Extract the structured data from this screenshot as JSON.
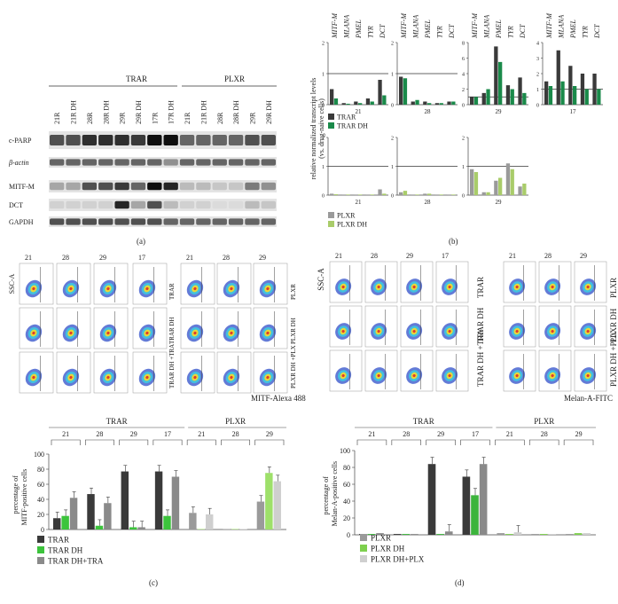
{
  "panel_labels": {
    "a": "(a)",
    "b": "(b)",
    "c": "(c)",
    "d": "(d)"
  },
  "panel_a": {
    "group_trar": "TRAR",
    "group_plxr": "PLXR",
    "lanes": [
      "21R",
      "21R DH",
      "28R",
      "28R DH",
      "29R",
      "29R DH",
      "17R",
      "17R DH",
      "21R",
      "21R DH",
      "28R",
      "28R DH",
      "29R",
      "29R DH"
    ],
    "rows": [
      "c-PARP",
      "β-actin",
      "MITF-M",
      "DCT",
      "GAPDH"
    ]
  },
  "panel_b": {
    "genes": [
      "MITF-M",
      "MLANA",
      "PMEL",
      "TYR",
      "DCT"
    ],
    "ylabel_line1": "relative normalized transcript levels",
    "ylabel_line2": "(vs. drug-naive cells)",
    "top_legend": [
      "TRAR",
      "TRAR DH"
    ],
    "bottom_legend": [
      "PLXR",
      "PLXR DH"
    ],
    "top_colors": [
      "#3a3a3a",
      "#1a8a4a"
    ],
    "bottom_colors": [
      "#9a9a9a",
      "#a9cc6a"
    ]
  },
  "panel_c": {
    "flow_cols": [
      "21",
      "28",
      "29",
      "17",
      "21",
      "28",
      "29"
    ],
    "row_labels_trar": [
      "TRAR",
      "TRAR DH",
      "TRAR DH +TRA"
    ],
    "row_labels_plxr": [
      "PLXR",
      "PLXR DH",
      "PLXR DH +PLX"
    ],
    "y_axis": "SSC-A",
    "x_axis": "MITF-Alexa 488",
    "ylabel_line1": "percentage of",
    "ylabel_line2": "MITF-positive cells",
    "group_trar": "TRAR",
    "group_plxr": "PLXR",
    "groups": [
      "21",
      "28",
      "29",
      "17",
      "21",
      "28",
      "29"
    ],
    "legend": [
      "TRAR",
      "TRAR DH",
      "TRAR DH+TRA"
    ],
    "colors": [
      "#3a3a3a",
      "#3cc43c",
      "#8a8a8a"
    ]
  },
  "panel_d": {
    "flow_cols": [
      "21",
      "28",
      "29",
      "17",
      "21",
      "28",
      "29"
    ],
    "row_labels_trar": [
      "TRAR",
      "TRAR DH",
      "TRAR DH +TRA"
    ],
    "row_labels_plxr": [
      "PLXR",
      "PLXR DH",
      "PLXR DH +PLX"
    ],
    "y_axis": "SSC-A",
    "x_axis": "Melan-A-FITC",
    "ylabel_line1": "percentage of",
    "ylabel_line2": "Melan-A-positive cells",
    "group_trar": "TRAR",
    "group_plxr": "PLXR",
    "groups": [
      "21",
      "28",
      "29",
      "17",
      "21",
      "28",
      "29"
    ],
    "legend": [
      "PLXR",
      "PLXR DH",
      "PLXR DH+PLX"
    ],
    "colors": [
      "#5a5a5a",
      "#3cb43c",
      "#9a9a9a"
    ],
    "legend_colors": [
      "#9a9a9a",
      "#7ed04e",
      "#cfcfcf"
    ]
  },
  "chart_data": [
    {
      "type": "bar",
      "id": "b-top",
      "categories_x": [
        "MITF-M",
        "MLANA",
        "PMEL",
        "TYR",
        "DCT"
      ],
      "panels": [
        {
          "label": "21",
          "ylim": [
            0,
            2
          ],
          "ticks": [
            0,
            1,
            2
          ],
          "series": [
            {
              "name": "TRAR",
              "values": [
                0.5,
                0.05,
                0.1,
                0.2,
                0.8
              ]
            },
            {
              "name": "TRAR DH",
              "values": [
                0.2,
                0.03,
                0.05,
                0.1,
                0.3
              ]
            }
          ]
        },
        {
          "label": "28",
          "ylim": [
            0,
            2
          ],
          "ticks": [
            0,
            1,
            2
          ],
          "series": [
            {
              "name": "TRAR",
              "values": [
                0.9,
                0.1,
                0.1,
                0.05,
                0.1
              ]
            },
            {
              "name": "TRAR DH",
              "values": [
                0.85,
                0.15,
                0.05,
                0.05,
                0.1
              ]
            }
          ]
        },
        {
          "label": "29",
          "ylim": [
            0,
            8
          ],
          "ticks": [
            0,
            2,
            4,
            6,
            8
          ],
          "series": [
            {
              "name": "TRAR",
              "values": [
                1.0,
                1.5,
                7.5,
                2.5,
                3.5
              ]
            },
            {
              "name": "TRAR DH",
              "values": [
                1.0,
                2.0,
                5.5,
                2.0,
                1.5
              ]
            }
          ]
        },
        {
          "label": "17",
          "ylim": [
            0,
            4
          ],
          "ticks": [
            0,
            1,
            2,
            3,
            4
          ],
          "series": [
            {
              "name": "TRAR",
              "values": [
                1.5,
                3.5,
                2.5,
                2.0,
                2.0
              ]
            },
            {
              "name": "TRAR DH",
              "values": [
                1.2,
                1.5,
                1.2,
                1.0,
                1.0
              ]
            }
          ]
        }
      ]
    },
    {
      "type": "bar",
      "id": "b-bottom",
      "categories_x": [
        "MITF-M",
        "MLANA",
        "PMEL",
        "TYR",
        "DCT"
      ],
      "panels": [
        {
          "label": "21",
          "ylim": [
            0,
            2
          ],
          "ticks": [
            0,
            1,
            2
          ],
          "series": [
            {
              "name": "PLXR",
              "values": [
                0.05,
                0.02,
                0.02,
                0.02,
                0.2
              ]
            },
            {
              "name": "PLXR DH",
              "values": [
                0.03,
                0.02,
                0.02,
                0.02,
                0.05
              ]
            }
          ]
        },
        {
          "label": "28",
          "ylim": [
            0,
            2
          ],
          "ticks": [
            0,
            1,
            2
          ],
          "series": [
            {
              "name": "PLXR",
              "values": [
                0.1,
                0.02,
                0.05,
                0.02,
                0.02
              ]
            },
            {
              "name": "PLXR DH",
              "values": [
                0.15,
                0.02,
                0.05,
                0.02,
                0.02
              ]
            }
          ]
        },
        {
          "label": "29",
          "ylim": [
            0,
            2
          ],
          "ticks": [
            0,
            1,
            2
          ],
          "series": [
            {
              "name": "PLXR",
              "values": [
                0.9,
                0.1,
                0.5,
                1.1,
                0.3
              ]
            },
            {
              "name": "PLXR DH",
              "values": [
                0.8,
                0.1,
                0.6,
                0.9,
                0.4
              ]
            }
          ]
        }
      ]
    },
    {
      "type": "bar",
      "id": "c-bars",
      "categories": [
        "21",
        "28",
        "29",
        "17",
        "21",
        "28",
        "29"
      ],
      "ylim": [
        0,
        100
      ],
      "ticks": [
        0,
        20,
        40,
        60,
        80,
        100
      ],
      "series": [
        {
          "name": "TRAR",
          "values": [
            15,
            47,
            77,
            77,
            null,
            null,
            null
          ]
        },
        {
          "name": "TRAR DH",
          "values": [
            18,
            5,
            3,
            18,
            null,
            null,
            null
          ]
        },
        {
          "name": "TRAR DH+TRA",
          "values": [
            42,
            35,
            3,
            70,
            null,
            null,
            null
          ]
        },
        {
          "name": "PLXR",
          "values": [
            null,
            null,
            null,
            null,
            22,
            0,
            37
          ]
        },
        {
          "name": "PLXR DH",
          "values": [
            null,
            null,
            null,
            null,
            0,
            0,
            75
          ]
        },
        {
          "name": "PLXR DH+PLX",
          "values": [
            null,
            null,
            null,
            null,
            20,
            0,
            64
          ]
        }
      ]
    },
    {
      "type": "bar",
      "id": "d-bars",
      "categories": [
        "21",
        "28",
        "29",
        "17",
        "21",
        "28",
        "29"
      ],
      "ylim": [
        0,
        100
      ],
      "ticks": [
        0,
        20,
        40,
        60,
        80,
        100
      ],
      "series": [
        {
          "name": "TRAR",
          "values": [
            1,
            1,
            84,
            69,
            null,
            null,
            null
          ]
        },
        {
          "name": "TRAR DH",
          "values": [
            1,
            1,
            1,
            47,
            null,
            null,
            null
          ]
        },
        {
          "name": "TRAR DH+TRA",
          "values": [
            2,
            1,
            4,
            84,
            null,
            null,
            null
          ]
        },
        {
          "name": "PLXR",
          "values": [
            null,
            null,
            null,
            null,
            2,
            1,
            1
          ]
        },
        {
          "name": "PLXR DH",
          "values": [
            null,
            null,
            null,
            null,
            1,
            1,
            2
          ]
        },
        {
          "name": "PLXR DH+PLX",
          "values": [
            null,
            null,
            null,
            null,
            3,
            1,
            2
          ]
        }
      ]
    }
  ]
}
